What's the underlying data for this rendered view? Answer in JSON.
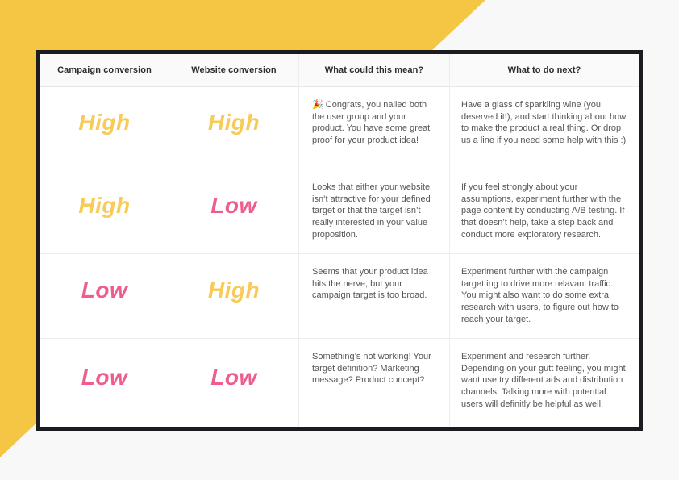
{
  "colors": {
    "high": "#F8CB58",
    "low": "#EE5E8D",
    "accent_yellow": "#F5C544",
    "frame_black": "#1C1C20",
    "page_background": "#F8F8F9",
    "header_background": "#FAFAFA",
    "body_text": "#56565A"
  },
  "table": {
    "headers": [
      "Campaign conversion",
      "Website conversion",
      "What could this mean?",
      "What to do next?"
    ],
    "rows": [
      {
        "campaign": "High",
        "website": "High",
        "meaning": "🎉 Congrats, you nailed both the user group and your product. You have some great proof for your product idea!",
        "next": "Have a glass of sparkling wine (you deserved it!), and start thinking about how to make the product a real thing. Or drop us a line if you need some help with this :)"
      },
      {
        "campaign": "High",
        "website": "Low",
        "meaning": "Looks that either your website isn’t attractive for your defined target or that the target isn’t really interested in your value proposition.",
        "next": "If you feel strongly about your assumptions, experiment further with the page content by conducting A/B testing. If that doesn’t help, take a step back and conduct more exploratory research."
      },
      {
        "campaign": "Low",
        "website": "High",
        "meaning": "Seems that your product idea hits the nerve, but your campaign target is too broad.",
        "next": "Experiment further with the campaign targetting to drive more relavant traffic. You might also want to do some extra research with users, to figure out how to reach your target."
      },
      {
        "campaign": "Low",
        "website": "Low",
        "meaning": "Something’s not working! Your target definition? Marketing message? Product concept?",
        "next": "Experiment and research further. Depending on your gutt feeling, you might want use try different ads and distribution channels. Talking more with potential users will definitly be helpful as well."
      }
    ]
  }
}
